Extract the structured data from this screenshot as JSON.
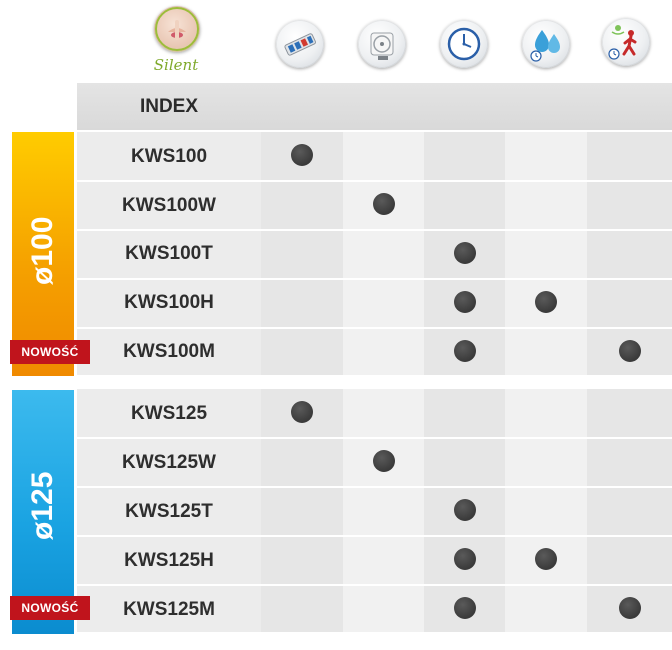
{
  "header": {
    "brand_text": "Silent",
    "icons": [
      {
        "name": "silent-logo-icon"
      },
      {
        "name": "cable-connector-icon"
      },
      {
        "name": "front-panel-fan-icon"
      },
      {
        "name": "timer-clock-icon"
      },
      {
        "name": "humidity-timer-icon"
      },
      {
        "name": "motion-sensor-icon"
      }
    ]
  },
  "table": {
    "header_label": "INDEX",
    "colors": {
      "orange_top": "#ffcc00",
      "orange_bottom": "#f39200",
      "blue_top": "#2fb3ea",
      "blue_bottom": "#0a8fd1",
      "badge": "#c0141c",
      "dot": "#3a3a3a"
    },
    "groups": [
      {
        "label": "ø100",
        "badge": "NOWOŚĆ",
        "rows": [
          {
            "model": "KWS100",
            "marks": [
              1,
              0,
              0,
              0,
              0
            ]
          },
          {
            "model": "KWS100W",
            "marks": [
              0,
              1,
              0,
              0,
              0
            ]
          },
          {
            "model": "KWS100T",
            "marks": [
              0,
              0,
              1,
              0,
              0
            ]
          },
          {
            "model": "KWS100H",
            "marks": [
              0,
              0,
              1,
              1,
              0
            ]
          },
          {
            "model": "KWS100M",
            "marks": [
              0,
              0,
              1,
              0,
              1
            ]
          }
        ]
      },
      {
        "label": "ø125",
        "badge": "NOWOŚĆ",
        "rows": [
          {
            "model": "KWS125",
            "marks": [
              1,
              0,
              0,
              0,
              0
            ]
          },
          {
            "model": "KWS125W",
            "marks": [
              0,
              1,
              0,
              0,
              0
            ]
          },
          {
            "model": "KWS125T",
            "marks": [
              0,
              0,
              1,
              0,
              0
            ]
          },
          {
            "model": "KWS125H",
            "marks": [
              0,
              0,
              1,
              1,
              0
            ]
          },
          {
            "model": "KWS125M",
            "marks": [
              0,
              0,
              1,
              0,
              1
            ]
          }
        ]
      }
    ]
  }
}
